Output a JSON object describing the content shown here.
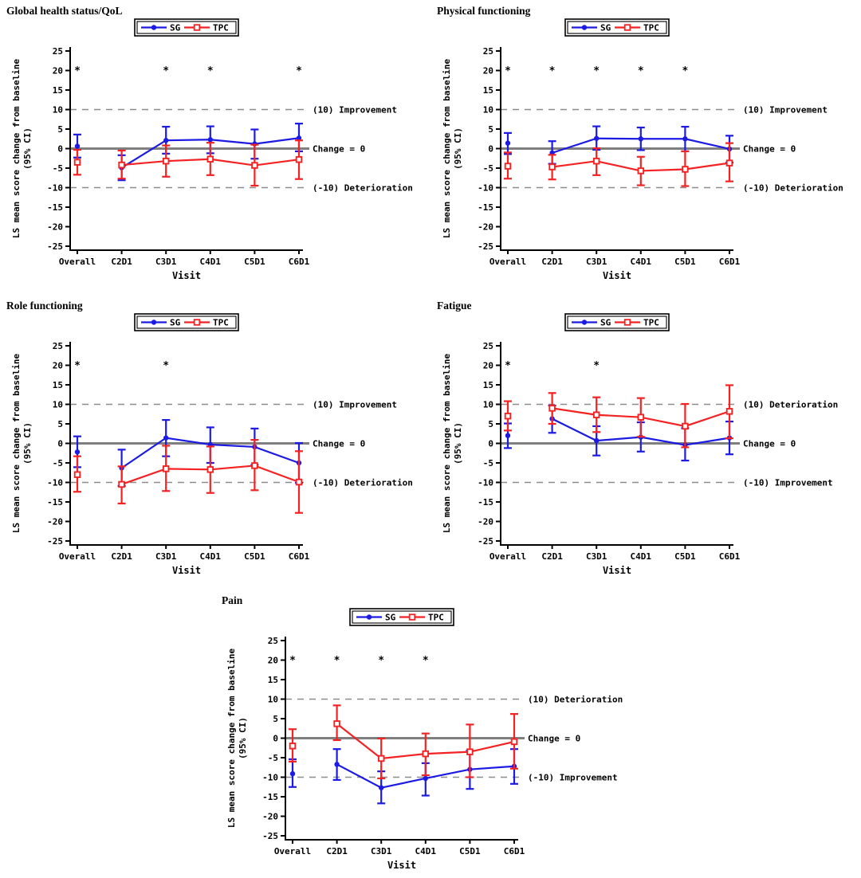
{
  "figure": {
    "background": "#ffffff",
    "significance_marker": "*",
    "significance_marker_y": 20
  },
  "colors": {
    "sg": "#1b1be4",
    "tpc": "#f42222",
    "zero_line": "#7f7f7f",
    "reference_line": "#8c8c8c",
    "axis": "#000000",
    "asterisk": "#000000",
    "legend_border": "#000000",
    "background": "#ffffff"
  },
  "legend": {
    "entries": [
      {
        "label": "SG",
        "series": "sg",
        "marker": "filled-circle"
      },
      {
        "label": "TPC",
        "series": "tpc",
        "marker": "open-square"
      }
    ]
  },
  "chart_data": [
    {
      "type": "line-errorbar",
      "title": "Global health status/QoL",
      "xlabel": "Visit",
      "ylabel": "LS mean score change from baseline",
      "ylabel_line2": "(95% CI)",
      "ylim": [
        -27,
        27
      ],
      "yticks": [
        25,
        20,
        15,
        10,
        5,
        0,
        -5,
        -10,
        -15,
        -20,
        -25
      ],
      "categories": [
        "Overall",
        "C2D1",
        "C3D1",
        "C4D1",
        "C5D1",
        "C6D1"
      ],
      "upper_ref": {
        "value": 10,
        "label": "(10) Improvement"
      },
      "zero_ref": {
        "value": 0,
        "label": "Change = 0"
      },
      "lower_ref": {
        "value": -10,
        "label": "(-10) Deterioration"
      },
      "asterisks": [
        "Overall",
        "C3D1",
        "C4D1",
        "C6D1"
      ],
      "series": [
        {
          "name": "SG",
          "color_key": "sg",
          "values": [
            0.6,
            -4.9,
            2.1,
            2.3,
            1.2,
            2.7
          ],
          "ci_low": [
            -2.3,
            -8.1,
            -1.3,
            -1.2,
            -2.6,
            -0.7
          ],
          "ci_high": [
            3.6,
            -1.7,
            5.6,
            5.7,
            4.9,
            6.4
          ]
        },
        {
          "name": "TPC",
          "color_key": "tpc",
          "values": [
            -3.5,
            -4.2,
            -3.2,
            -2.7,
            -4.3,
            -2.8
          ],
          "ci_low": [
            -6.7,
            -7.7,
            -7.2,
            -6.8,
            -9.5,
            -7.8
          ],
          "ci_high": [
            -0.3,
            -0.5,
            0.8,
            1.5,
            1.0,
            2.1
          ]
        }
      ]
    },
    {
      "type": "line-errorbar",
      "title": "Physical functioning",
      "xlabel": "Visit",
      "ylabel": "LS mean score change from baseline",
      "ylabel_line2": "(95% CI)",
      "ylim": [
        -27,
        27
      ],
      "yticks": [
        25,
        20,
        15,
        10,
        5,
        0,
        -5,
        -10,
        -15,
        -20,
        -25
      ],
      "categories": [
        "Overall",
        "C2D1",
        "C3D1",
        "C4D1",
        "C5D1",
        "C6D1"
      ],
      "upper_ref": {
        "value": 10,
        "label": "(10) Improvement"
      },
      "zero_ref": {
        "value": 0,
        "label": "Change = 0"
      },
      "lower_ref": {
        "value": -10,
        "label": "(-10) Deterioration"
      },
      "asterisks": [
        "Overall",
        "C2D1",
        "C3D1",
        "C4D1",
        "C5D1"
      ],
      "series": [
        {
          "name": "SG",
          "color_key": "sg",
          "values": [
            1.4,
            -1.1,
            2.6,
            2.5,
            2.5,
            -0.1
          ],
          "ci_low": [
            -1.4,
            -3.9,
            -0.3,
            -0.4,
            -0.7,
            -3.6
          ],
          "ci_high": [
            4.0,
            1.9,
            5.7,
            5.4,
            5.6,
            3.3
          ]
        },
        {
          "name": "TPC",
          "color_key": "tpc",
          "values": [
            -4.5,
            -4.7,
            -3.2,
            -5.7,
            -5.3,
            -3.7
          ],
          "ci_low": [
            -7.7,
            -7.9,
            -6.8,
            -9.4,
            -9.6,
            -8.4
          ],
          "ci_high": [
            -1.0,
            -1.6,
            0.1,
            -2.1,
            -0.7,
            1.4
          ]
        }
      ]
    },
    {
      "type": "line-errorbar",
      "title": "Role functioning",
      "xlabel": "Visit",
      "ylabel": "LS mean score change from baseline",
      "ylabel_line2": "(95% CI)",
      "ylim": [
        -27,
        27
      ],
      "yticks": [
        25,
        20,
        15,
        10,
        5,
        0,
        -5,
        -10,
        -15,
        -20,
        -25
      ],
      "categories": [
        "Overall",
        "C2D1",
        "C3D1",
        "C4D1",
        "C5D1",
        "C6D1"
      ],
      "upper_ref": {
        "value": 10,
        "label": "(10) Improvement"
      },
      "zero_ref": {
        "value": 0,
        "label": "Change = 0"
      },
      "lower_ref": {
        "value": -10,
        "label": "(-10) Deterioration"
      },
      "asterisks": [
        "Overall",
        "C3D1"
      ],
      "series": [
        {
          "name": "SG",
          "color_key": "sg",
          "values": [
            -2.2,
            -6.3,
            1.4,
            -0.3,
            -0.9,
            -5.0
          ],
          "ci_low": [
            -6.1,
            -10.9,
            -3.3,
            -5.0,
            -5.5,
            -10.1
          ],
          "ci_high": [
            1.8,
            -1.6,
            6.0,
            4.1,
            3.8,
            0.1
          ]
        },
        {
          "name": "TPC",
          "color_key": "tpc",
          "values": [
            -8.0,
            -10.5,
            -6.5,
            -6.7,
            -5.7,
            -9.9
          ],
          "ci_low": [
            -12.4,
            -15.4,
            -12.2,
            -12.7,
            -12.0,
            -17.8
          ],
          "ci_high": [
            -3.3,
            -5.9,
            -0.6,
            -0.8,
            0.9,
            -2.0
          ]
        }
      ]
    },
    {
      "type": "line-errorbar",
      "title": "Fatigue",
      "xlabel": "Visit",
      "ylabel": "LS mean score change from baseline",
      "ylabel_line2": "(95% CI)",
      "ylim": [
        -27,
        27
      ],
      "yticks": [
        25,
        20,
        15,
        10,
        5,
        0,
        -5,
        -10,
        -15,
        -20,
        -25
      ],
      "categories": [
        "Overall",
        "C2D1",
        "C3D1",
        "C4D1",
        "C5D1",
        "C6D1"
      ],
      "upper_ref": {
        "value": 10,
        "label": "(10) Deterioration"
      },
      "zero_ref": {
        "value": 0,
        "label": "Change = 0"
      },
      "lower_ref": {
        "value": -10,
        "label": "(-10) Improvement"
      },
      "asterisks": [
        "Overall",
        "C3D1"
      ],
      "series": [
        {
          "name": "SG",
          "color_key": "sg",
          "values": [
            2.0,
            6.3,
            0.7,
            1.6,
            -0.4,
            1.4
          ],
          "ci_low": [
            -1.2,
            2.7,
            -3.1,
            -2.1,
            -4.4,
            -2.8
          ],
          "ci_high": [
            5.1,
            9.7,
            4.4,
            5.4,
            3.9,
            5.6
          ]
        },
        {
          "name": "TPC",
          "color_key": "tpc",
          "values": [
            7.0,
            9.0,
            7.3,
            6.7,
            4.4,
            8.2
          ],
          "ci_low": [
            3.3,
            5.0,
            2.9,
            1.7,
            -1.0,
            1.3
          ],
          "ci_high": [
            10.8,
            12.9,
            11.8,
            11.6,
            10.1,
            14.9
          ]
        }
      ]
    },
    {
      "type": "line-errorbar",
      "title": "Pain",
      "xlabel": "Visit",
      "ylabel": "LS mean score change from baseline",
      "ylabel_line2": "(95% CI)",
      "ylim": [
        -27,
        27
      ],
      "yticks": [
        25,
        20,
        15,
        10,
        5,
        0,
        -5,
        -10,
        -15,
        -20,
        -25
      ],
      "categories": [
        "Overall",
        "C2D1",
        "C3D1",
        "C4D1",
        "C5D1",
        "C6D1"
      ],
      "upper_ref": {
        "value": 10,
        "label": "(10) Deterioration"
      },
      "zero_ref": {
        "value": 0,
        "label": "Change = 0"
      },
      "lower_ref": {
        "value": -10,
        "label": "(-10) Improvement"
      },
      "asterisks": [
        "Overall",
        "C2D1",
        "C3D1",
        "C4D1"
      ],
      "series": [
        {
          "name": "SG",
          "color_key": "sg",
          "values": [
            -9.1,
            -6.7,
            -12.7,
            -10.3,
            -8.0,
            -7.2
          ],
          "ci_low": [
            -12.5,
            -10.7,
            -16.7,
            -14.7,
            -13.0,
            -11.7
          ],
          "ci_high": [
            -5.4,
            -2.8,
            -8.5,
            -6.4,
            -3.2,
            -2.8
          ]
        },
        {
          "name": "TPC",
          "color_key": "tpc",
          "values": [
            -2.0,
            3.7,
            -5.2,
            -4.0,
            -3.5,
            -0.9
          ],
          "ci_low": [
            -6.0,
            -0.5,
            -10.3,
            -9.5,
            -10.0,
            -7.8
          ],
          "ci_high": [
            2.3,
            8.4,
            -0.1,
            1.2,
            3.5,
            6.2
          ]
        }
      ]
    }
  ]
}
